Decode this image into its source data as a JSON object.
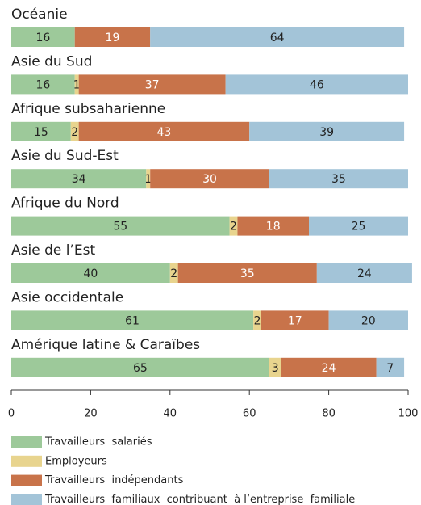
{
  "chart_data": {
    "type": "bar",
    "orientation": "horizontal",
    "stacked": true,
    "categories": [
      "Océanie",
      "Asie du Sud",
      "Afrique subsaharienne",
      "Asie du Sud-Est",
      "Afrique du Nord",
      "Asie de l’Est",
      "Asie occidentale",
      "Amérique latine & Caraïbes"
    ],
    "series": [
      {
        "name": "Travailleurs  salariés",
        "color": "#9dc99a",
        "values": [
          16,
          16,
          15,
          34,
          55,
          40,
          61,
          65
        ]
      },
      {
        "name": "Employeurs",
        "color": "#e8d48e",
        "values": [
          null,
          1,
          2,
          1,
          2,
          2,
          2,
          3
        ]
      },
      {
        "name": "Travailleurs  indépendants",
        "color": "#c8734a",
        "values": [
          19,
          37,
          43,
          30,
          18,
          35,
          17,
          24
        ]
      },
      {
        "name": "Travailleurs  familiaux  contribuant  à l’entreprise  familiale",
        "color": "#a3c4d8",
        "values": [
          64,
          46,
          39,
          35,
          25,
          24,
          20,
          7
        ]
      }
    ],
    "xlim": [
      0,
      100
    ],
    "xticks": [
      0,
      20,
      40,
      60,
      80,
      100
    ]
  }
}
